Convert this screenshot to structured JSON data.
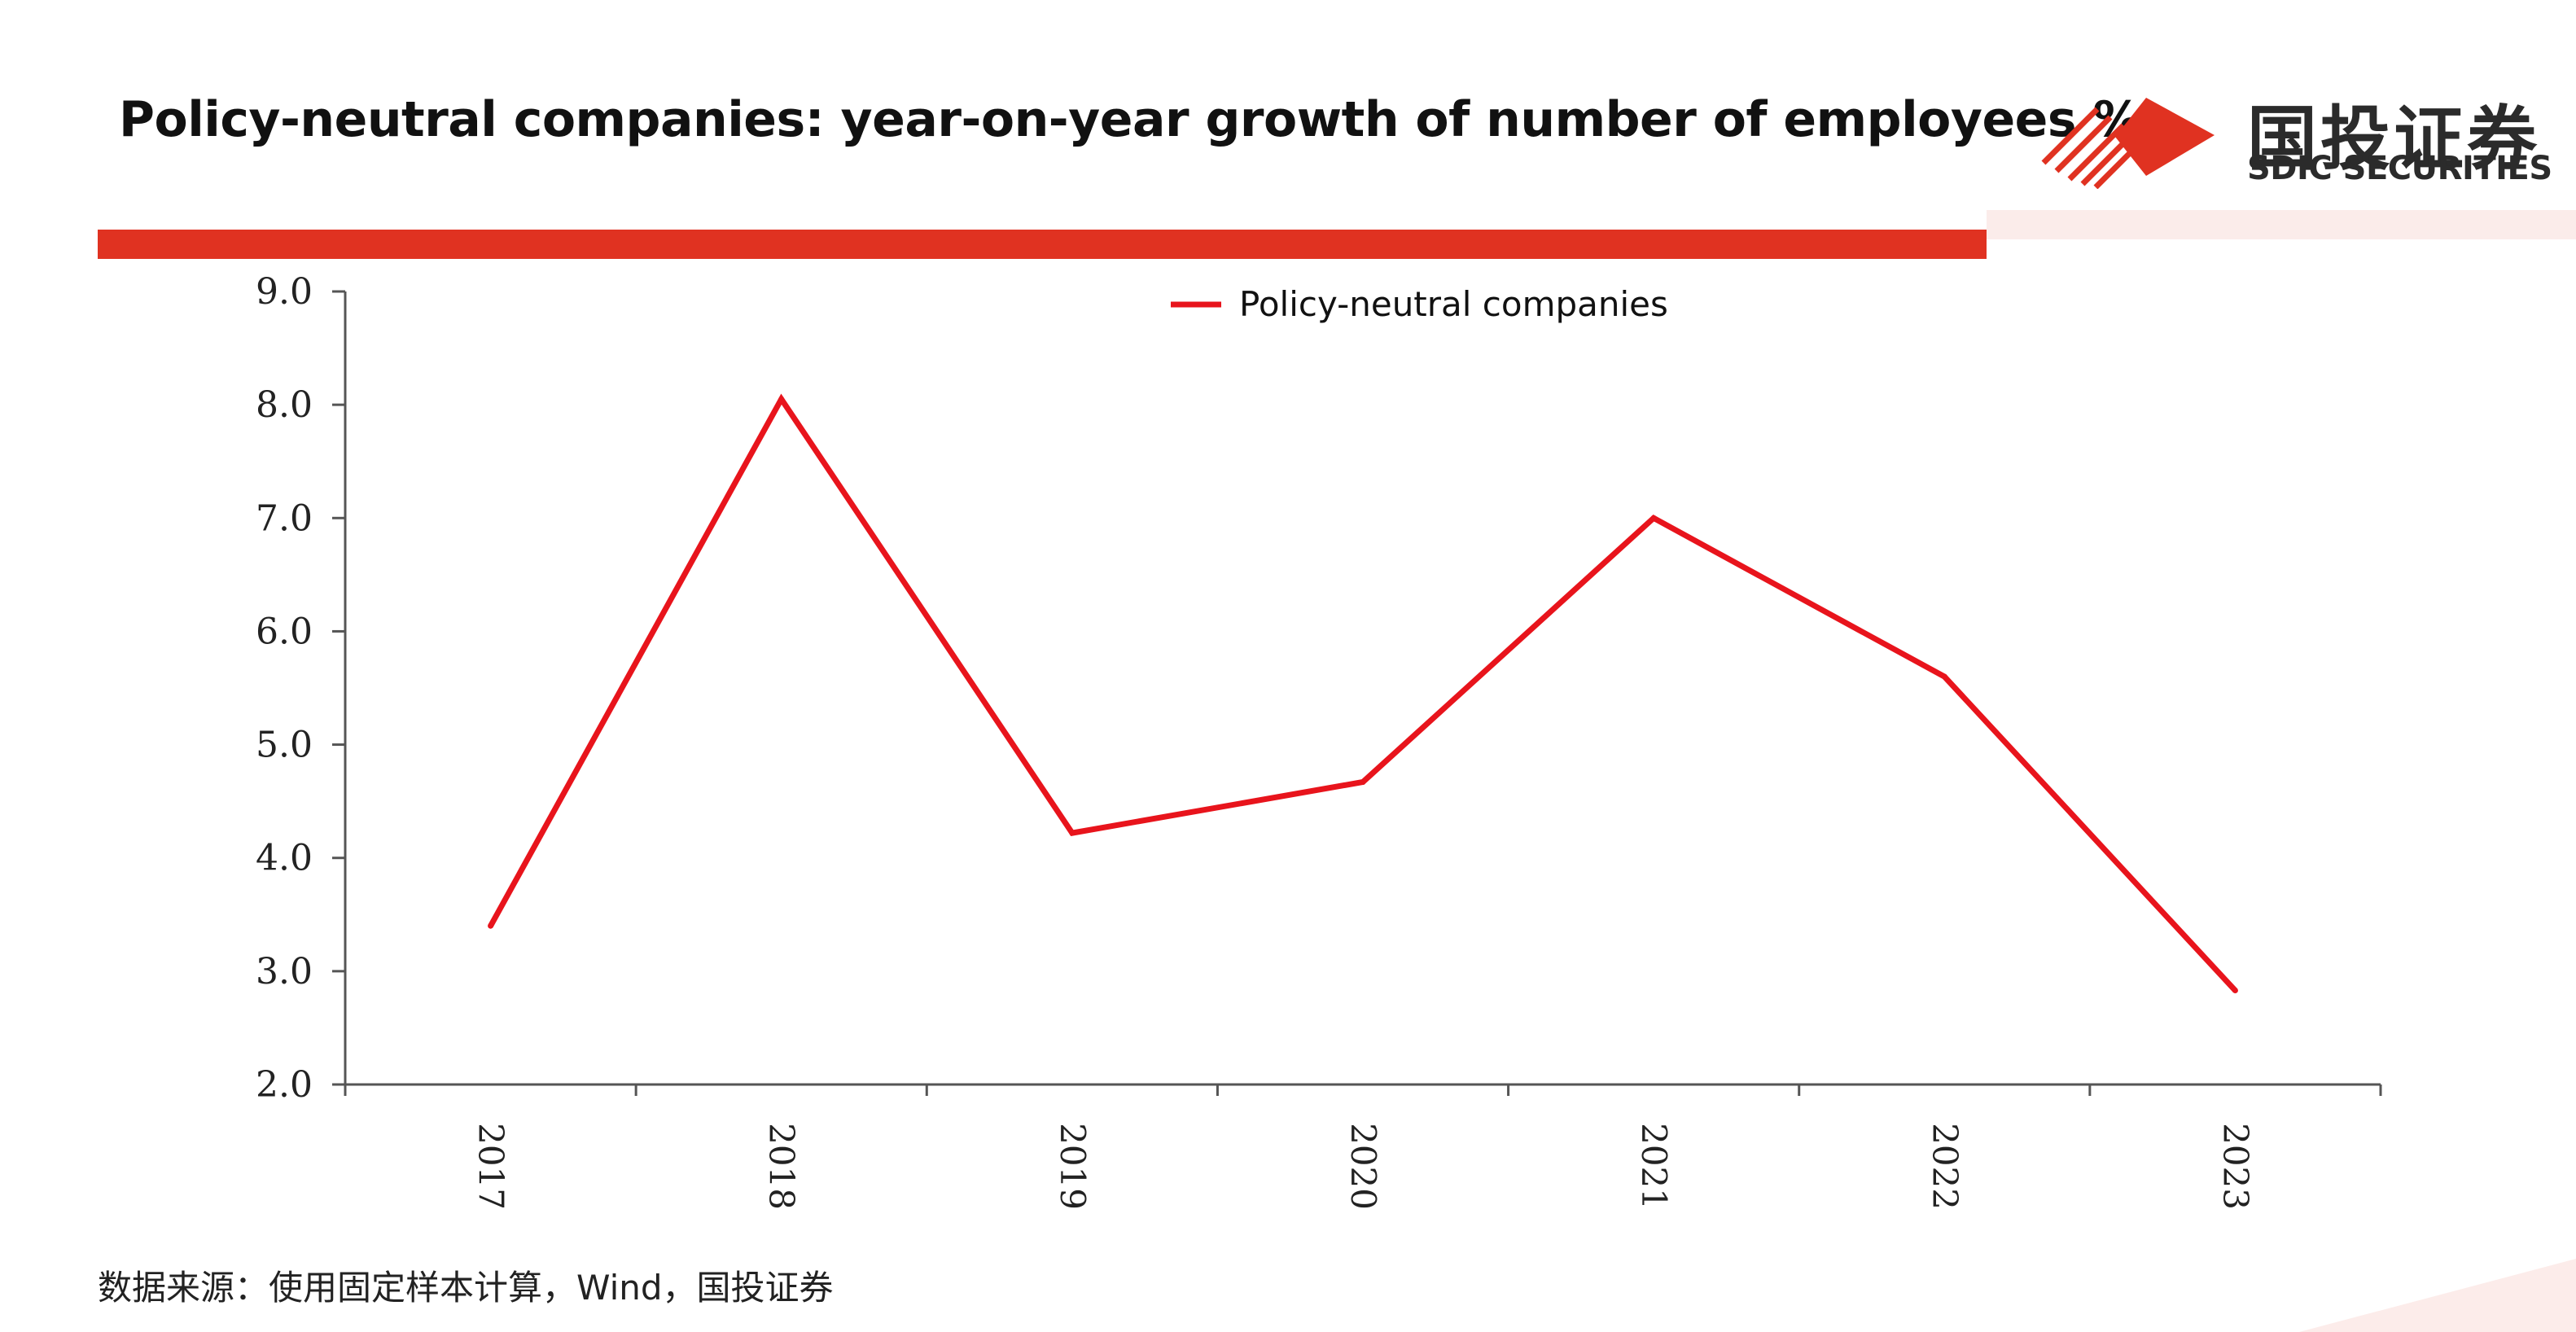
{
  "header": {
    "title": "Policy-neutral companies: year-on-year growth of number of employees %",
    "brand_cn": "国投证券",
    "brand_en": "SDIC SECURITIES"
  },
  "colors": {
    "accent": "#e03221",
    "series_line": "#e8141c",
    "axis": "#555555"
  },
  "chart_data": {
    "type": "line",
    "categories": [
      "2017",
      "2018",
      "2019",
      "2020",
      "2021",
      "2022",
      "2023"
    ],
    "series": [
      {
        "name": "Policy-neutral companies",
        "values": [
          3.4,
          8.05,
          4.22,
          4.67,
          7.0,
          5.6,
          2.83
        ]
      }
    ],
    "yticks": [
      "2.0",
      "3.0",
      "4.0",
      "5.0",
      "6.0",
      "7.0",
      "8.0",
      "9.0"
    ],
    "ylim": [
      2.0,
      9.0
    ],
    "grid": false,
    "legend": "top-center",
    "xlabel": "",
    "ylabel": ""
  },
  "footer": {
    "source": "数据来源：使用固定样本计算，Wind，国投证券"
  }
}
